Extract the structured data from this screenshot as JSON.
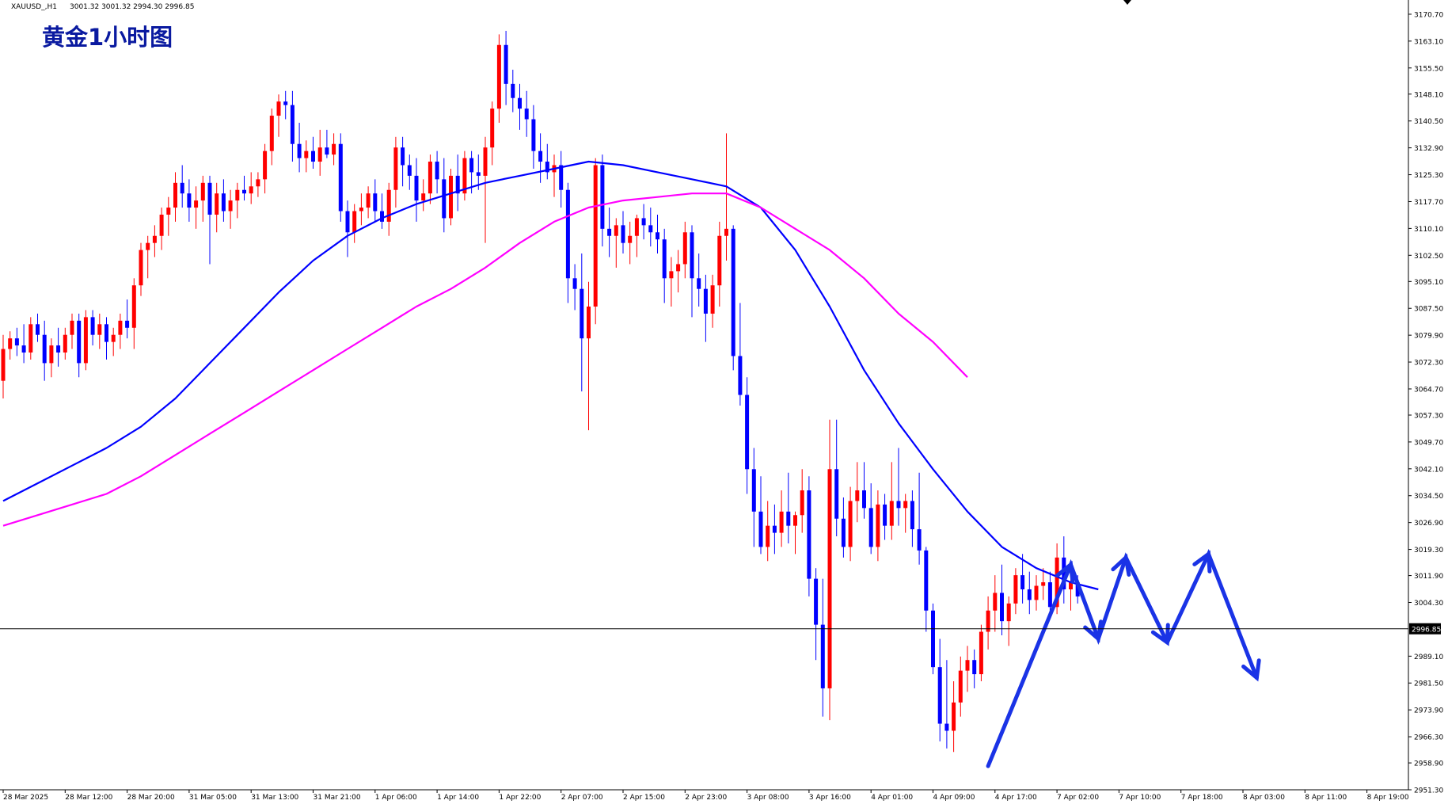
{
  "header": {
    "symbol": "XAUUSD_,H1",
    "ohlc": "3001.32 3001.32 2994.30 2996.85"
  },
  "colors": {
    "up": "#ff0000",
    "down": "#0000ff",
    "ma_fast": "#0000ff",
    "ma_slow": "#ff00ff",
    "annotation": "#1a33e6",
    "title": "#0a1aa0",
    "grid_axis": "#000000",
    "price_line": "#000000"
  },
  "chart_data": {
    "type": "candlestick",
    "title": "黄金1小时图",
    "ylim": [
      2951.3,
      3174.5
    ],
    "grid": false,
    "y_ticks": [
      "3170.70",
      "3163.10",
      "3155.50",
      "3148.10",
      "3140.50",
      "3132.90",
      "3125.30",
      "3117.70",
      "3110.10",
      "3102.50",
      "3095.10",
      "3087.50",
      "3079.90",
      "3072.30",
      "3064.70",
      "3057.30",
      "3049.70",
      "3042.10",
      "3034.50",
      "3026.90",
      "3019.30",
      "3011.90",
      "3004.30",
      "2989.10",
      "2981.50",
      "2973.90",
      "2966.30",
      "2958.90",
      "2951.30"
    ],
    "x_labels": [
      "28 Mar 2025",
      "28 Mar 12:00",
      "28 Mar 20:00",
      "31 Mar 05:00",
      "31 Mar 13:00",
      "31 Mar 21:00",
      "1 Apr 06:00",
      "1 Apr 14:00",
      "1 Apr 22:00",
      "2 Apr 07:00",
      "2 Apr 15:00",
      "2 Apr 23:00",
      "3 Apr 08:00",
      "3 Apr 16:00",
      "4 Apr 01:00",
      "4 Apr 09:00",
      "4 Apr 17:00",
      "7 Apr 02:00",
      "7 Apr 10:00",
      "7 Apr 18:00",
      "8 Apr 03:00",
      "8 Apr 11:00",
      "8 Apr 19:00"
    ],
    "current_price": "2996.85",
    "current_price_value": 2996.85,
    "candles_ohlc": [
      [
        3067,
        3080,
        3062,
        3076
      ],
      [
        3076,
        3081,
        3073,
        3079
      ],
      [
        3079,
        3082,
        3074,
        3077
      ],
      [
        3077,
        3083,
        3072,
        3075
      ],
      [
        3075,
        3085,
        3073,
        3083
      ],
      [
        3083,
        3086,
        3078,
        3080
      ],
      [
        3080,
        3084,
        3067,
        3072
      ],
      [
        3072,
        3079,
        3068,
        3077
      ],
      [
        3077,
        3082,
        3071,
        3075
      ],
      [
        3075,
        3082,
        3073,
        3080
      ],
      [
        3080,
        3086,
        3076,
        3084
      ],
      [
        3084,
        3086,
        3068,
        3072
      ],
      [
        3072,
        3087,
        3070,
        3085
      ],
      [
        3085,
        3087,
        3077,
        3080
      ],
      [
        3080,
        3086,
        3076,
        3083
      ],
      [
        3083,
        3085,
        3073,
        3078
      ],
      [
        3078,
        3082,
        3074,
        3080
      ],
      [
        3080,
        3086,
        3076,
        3084
      ],
      [
        3084,
        3090,
        3079,
        3082
      ],
      [
        3082,
        3096,
        3076,
        3094
      ],
      [
        3094,
        3106,
        3091,
        3104
      ],
      [
        3104,
        3108,
        3096,
        3106
      ],
      [
        3106,
        3111,
        3102,
        3108
      ],
      [
        3108,
        3116,
        3104,
        3114
      ],
      [
        3114,
        3119,
        3108,
        3116
      ],
      [
        3116,
        3126,
        3112,
        3123
      ],
      [
        3123,
        3128,
        3116,
        3120
      ],
      [
        3120,
        3124,
        3112,
        3116
      ],
      [
        3116,
        3122,
        3110,
        3118
      ],
      [
        3118,
        3125,
        3112,
        3123
      ],
      [
        3123,
        3125,
        3100,
        3114
      ],
      [
        3114,
        3123,
        3109,
        3120
      ],
      [
        3120,
        3124,
        3112,
        3115
      ],
      [
        3115,
        3121,
        3110,
        3118
      ],
      [
        3118,
        3123,
        3113,
        3121
      ],
      [
        3121,
        3125,
        3118,
        3120
      ],
      [
        3120,
        3126,
        3117,
        3122
      ],
      [
        3122,
        3126,
        3119,
        3124
      ],
      [
        3124,
        3134,
        3120,
        3132
      ],
      [
        3132,
        3144,
        3128,
        3142
      ],
      [
        3142,
        3148,
        3136,
        3146
      ],
      [
        3146,
        3149,
        3141,
        3145
      ],
      [
        3145,
        3149,
        3129,
        3134
      ],
      [
        3134,
        3140,
        3126,
        3130
      ],
      [
        3130,
        3135,
        3126,
        3132
      ],
      [
        3132,
        3136,
        3127,
        3129
      ],
      [
        3129,
        3138,
        3125,
        3133
      ],
      [
        3133,
        3138,
        3130,
        3131
      ],
      [
        3131,
        3137,
        3128,
        3134
      ],
      [
        3134,
        3137,
        3112,
        3115
      ],
      [
        3115,
        3118,
        3102,
        3109
      ],
      [
        3109,
        3117,
        3106,
        3115
      ],
      [
        3115,
        3120,
        3111,
        3116
      ],
      [
        3116,
        3122,
        3113,
        3120
      ],
      [
        3120,
        3124,
        3112,
        3115
      ],
      [
        3115,
        3120,
        3110,
        3112
      ],
      [
        3112,
        3123,
        3108,
        3121
      ],
      [
        3121,
        3136,
        3116,
        3133
      ],
      [
        3133,
        3136,
        3122,
        3128
      ],
      [
        3128,
        3131,
        3121,
        3125
      ],
      [
        3125,
        3130,
        3112,
        3118
      ],
      [
        3118,
        3124,
        3115,
        3120
      ],
      [
        3120,
        3131,
        3117,
        3129
      ],
      [
        3129,
        3132,
        3120,
        3124
      ],
      [
        3124,
        3130,
        3109,
        3113
      ],
      [
        3113,
        3127,
        3111,
        3125
      ],
      [
        3125,
        3131,
        3115,
        3120
      ],
      [
        3120,
        3132,
        3118,
        3130
      ],
      [
        3130,
        3132,
        3120,
        3126
      ],
      [
        3126,
        3131,
        3121,
        3125
      ],
      [
        3125,
        3136,
        3106,
        3133
      ],
      [
        3133,
        3146,
        3128,
        3144
      ],
      [
        3144,
        3165,
        3140,
        3162
      ],
      [
        3162,
        3166,
        3145,
        3151
      ],
      [
        3151,
        3155,
        3143,
        3147
      ],
      [
        3147,
        3151,
        3138,
        3144
      ],
      [
        3144,
        3149,
        3136,
        3141
      ],
      [
        3141,
        3145,
        3127,
        3132
      ],
      [
        3132,
        3137,
        3123,
        3129
      ],
      [
        3129,
        3134,
        3124,
        3126
      ],
      [
        3126,
        3131,
        3119,
        3128
      ],
      [
        3128,
        3132,
        3116,
        3121
      ],
      [
        3121,
        3123,
        3089,
        3096
      ],
      [
        3096,
        3100,
        3087,
        3093
      ],
      [
        3093,
        3103,
        3064,
        3079
      ],
      [
        3079,
        3095,
        3053,
        3088
      ],
      [
        3088,
        3130,
        3083,
        3128
      ],
      [
        3128,
        3131,
        3105,
        3110
      ],
      [
        3110,
        3116,
        3102,
        3108
      ],
      [
        3108,
        3113,
        3099,
        3111
      ],
      [
        3111,
        3115,
        3103,
        3106
      ],
      [
        3106,
        3112,
        3100,
        3108
      ],
      [
        3108,
        3114,
        3102,
        3113
      ],
      [
        3113,
        3117,
        3107,
        3111
      ],
      [
        3111,
        3116,
        3105,
        3109
      ],
      [
        3109,
        3114,
        3103,
        3107
      ],
      [
        3107,
        3110,
        3089,
        3096
      ],
      [
        3096,
        3102,
        3088,
        3098
      ],
      [
        3098,
        3104,
        3092,
        3100
      ],
      [
        3100,
        3112,
        3096,
        3109
      ],
      [
        3109,
        3111,
        3085,
        3096
      ],
      [
        3096,
        3103,
        3088,
        3093
      ],
      [
        3093,
        3097,
        3078,
        3086
      ],
      [
        3086,
        3097,
        3082,
        3094
      ],
      [
        3094,
        3112,
        3088,
        3108
      ],
      [
        3108,
        3137,
        3101,
        3110
      ],
      [
        3110,
        3111,
        3070,
        3074
      ],
      [
        3074,
        3089,
        3060,
        3063
      ],
      [
        3063,
        3068,
        3035,
        3042
      ],
      [
        3042,
        3048,
        3020,
        3030
      ],
      [
        3030,
        3040,
        3018,
        3020
      ],
      [
        3020,
        3033,
        3016,
        3026
      ],
      [
        3026,
        3032,
        3018,
        3024
      ],
      [
        3024,
        3036,
        3020,
        3030
      ],
      [
        3030,
        3041,
        3021,
        3026
      ],
      [
        3026,
        3030,
        3018,
        3029
      ],
      [
        3029,
        3042,
        3024,
        3036
      ],
      [
        3036,
        3040,
        3006,
        3011
      ],
      [
        3011,
        3014,
        2988,
        2998
      ],
      [
        2998,
        3011,
        2972,
        2980
      ],
      [
        2980,
        3056,
        2971,
        3042
      ],
      [
        3042,
        3056,
        3023,
        3028
      ],
      [
        3028,
        3034,
        3017,
        3020
      ],
      [
        3020,
        3037,
        3016,
        3033
      ],
      [
        3033,
        3044,
        3027,
        3036
      ],
      [
        3036,
        3044,
        3028,
        3031
      ],
      [
        3031,
        3038,
        3018,
        3020
      ],
      [
        3020,
        3036,
        3016,
        3032
      ],
      [
        3032,
        3035,
        3022,
        3026
      ],
      [
        3026,
        3044,
        3022,
        3033
      ],
      [
        3033,
        3048,
        3026,
        3031
      ],
      [
        3031,
        3035,
        3024,
        3033
      ],
      [
        3033,
        3036,
        3020,
        3025
      ],
      [
        3025,
        3041,
        3015,
        3019
      ],
      [
        3019,
        3020,
        2996,
        3002
      ],
      [
        3002,
        3004,
        2984,
        2986
      ],
      [
        2986,
        2994,
        2965,
        2970
      ],
      [
        2970,
        2988,
        2963,
        2968
      ],
      [
        2968,
        2982,
        2962,
        2976
      ],
      [
        2976,
        2989,
        2972,
        2985
      ],
      [
        2985,
        2992,
        2979,
        2988
      ],
      [
        2988,
        2991,
        2980,
        2984
      ],
      [
        2984,
        2998,
        2982,
        2996
      ],
      [
        2996,
        3006,
        2991,
        3002
      ],
      [
        3002,
        3012,
        2996,
        3007
      ],
      [
        3007,
        3015,
        2995,
        2999
      ],
      [
        2999,
        3006,
        2992,
        3004
      ],
      [
        3004,
        3014,
        3001,
        3012
      ],
      [
        3012,
        3018,
        3004,
        3008
      ],
      [
        3008,
        3013,
        3001,
        3005
      ],
      [
        3005,
        3012,
        3002,
        3009
      ],
      [
        3009,
        3014,
        3005,
        3010
      ],
      [
        3010,
        3013,
        3000,
        3003
      ],
      [
        3003,
        3021,
        3001,
        3017
      ],
      [
        3017,
        3023,
        3004,
        3008
      ],
      [
        3008,
        3012,
        3002,
        3010
      ],
      [
        3010,
        3012,
        3004,
        3006
      ]
    ],
    "series": [
      {
        "type": "line",
        "x": [
          0,
          5,
          10,
          15,
          20,
          25,
          30,
          35,
          40,
          45,
          50,
          55,
          60,
          65,
          70,
          75,
          80,
          85,
          90,
          95,
          100,
          105,
          110,
          115,
          120,
          125,
          130,
          135,
          140,
          145,
          150,
          155,
          159
        ],
        "values": [
          3033,
          3038,
          3043,
          3048,
          3054,
          3062,
          3072,
          3082,
          3092,
          3101,
          3108,
          3113,
          3117,
          3120,
          3123,
          3125,
          3127,
          3129,
          3128,
          3126,
          3124,
          3122,
          3116,
          3104,
          3088,
          3070,
          3055,
          3042,
          3030,
          3020,
          3014,
          3010,
          3008
        ]
      },
      {
        "type": "line",
        "x": [
          0,
          5,
          10,
          15,
          20,
          25,
          30,
          35,
          40,
          45,
          50,
          55,
          60,
          65,
          70,
          75,
          80,
          85,
          90,
          95,
          100,
          105,
          110,
          115,
          120,
          125,
          130,
          135,
          140
        ],
        "values": [
          3026,
          3029,
          3032,
          3035,
          3040,
          3046,
          3052,
          3058,
          3064,
          3070,
          3076,
          3082,
          3088,
          3093,
          3099,
          3106,
          3112,
          3116,
          3118,
          3119,
          3120,
          3120,
          3116,
          3110,
          3104,
          3096,
          3086,
          3078,
          3068
        ]
      }
    ],
    "annotations": [
      {
        "type": "arrow",
        "points": [
          [
            143,
            2958
          ],
          [
            155,
            3015
          ],
          [
            159,
            2994
          ],
          [
            163,
            3017
          ],
          [
            169,
            2993
          ]
        ]
      },
      {
        "type": "arrow",
        "points": [
          [
            169,
            2993
          ],
          [
            175,
            3018
          ],
          [
            182,
            2983
          ]
        ]
      }
    ]
  }
}
